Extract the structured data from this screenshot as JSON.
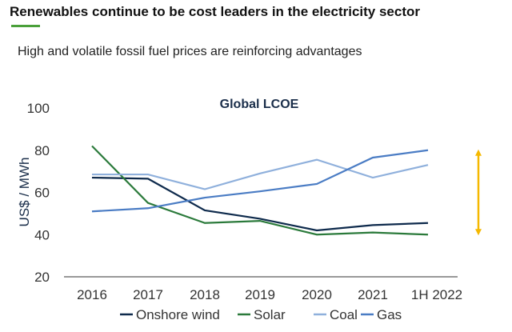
{
  "header": {
    "title": "Renewables continue to be cost leaders in the electricity sector",
    "subtitle": "High and volatile fossil fuel prices are reinforcing advantages"
  },
  "chart_data": {
    "type": "line",
    "title": "Global LCOE",
    "ylabel": "US$ / MWh",
    "xlabel": "",
    "ylim": [
      20,
      100
    ],
    "yticks": [
      20,
      40,
      60,
      80,
      100
    ],
    "categories": [
      "2016",
      "2017",
      "2018",
      "2019",
      "2020",
      "2021",
      "1H 2022"
    ],
    "grid": false,
    "legend": "bottom",
    "series": [
      {
        "name": "Onshore wind",
        "color": "#0e2a4c",
        "values": [
          67,
          66.5,
          51.5,
          47.5,
          42,
          44.5,
          45.5
        ]
      },
      {
        "name": "Solar",
        "color": "#2b7a3b",
        "values": [
          82,
          55,
          45.5,
          46.5,
          40,
          41,
          40
        ]
      },
      {
        "name": "Coal",
        "color": "#8fb0dc",
        "values": [
          68.5,
          68.5,
          61.5,
          69,
          75.5,
          67,
          73
        ]
      },
      {
        "name": "Gas",
        "color": "#4a7cc4",
        "values": [
          51,
          52.5,
          57.5,
          60.5,
          64,
          76.5,
          80
        ]
      }
    ],
    "annotation": {
      "type": "double-arrow",
      "color": "#f5b800",
      "x": "1H 2022",
      "range": [
        40,
        80
      ]
    }
  }
}
